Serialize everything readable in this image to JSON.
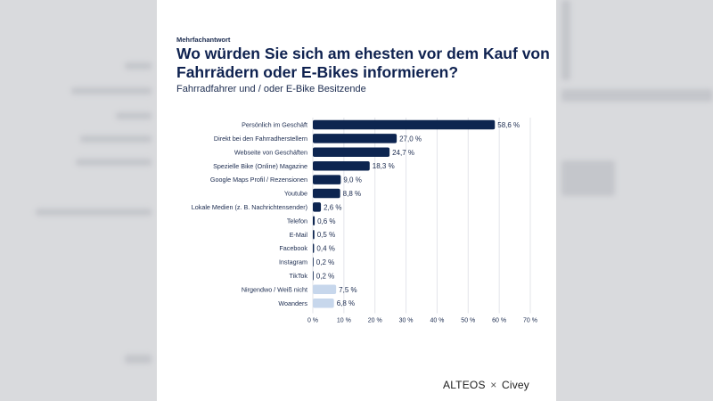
{
  "eyebrow": "Mehrfachantwort",
  "title": "Wo würden Sie sich am ehesten vor dem Kauf von Fahrrädern oder E-Bikes informieren?",
  "subtitle": "Fahrradfahrer und / oder E-Bike Besitzende",
  "brand": {
    "left": "ALTEOS",
    "separator": "×",
    "right": "Civey"
  },
  "colors": {
    "primary_bar": "#0d2550",
    "secondary_bar": "#c7d7ec",
    "grid": "#e3e5ea"
  },
  "chart_data": {
    "type": "bar",
    "orientation": "horizontal",
    "categories": [
      "Persönlich im Geschäft",
      "Direkt bei den Fahrradherstellern",
      "Webseite von Geschäften",
      "Spezielle Bike (Online) Magazine",
      "Google Maps Profil / Rezensionen",
      "Youtube",
      "Lokale Medien (z. B. Nachrichtensender)",
      "Telefon",
      "E-Mail",
      "Facebook",
      "Instagram",
      "TikTok",
      "Nirgendwo / Weiß nicht",
      "Woanders"
    ],
    "values": [
      58.6,
      27.0,
      24.7,
      18.3,
      9.0,
      8.8,
      2.6,
      0.6,
      0.5,
      0.4,
      0.2,
      0.2,
      7.5,
      6.8
    ],
    "value_labels": [
      "58,6 %",
      "27,0 %",
      "24,7 %",
      "18,3 %",
      "9,0 %",
      "8,8 %",
      "2,6 %",
      "0,6 %",
      "0,5 %",
      "0,4 %",
      "0,2 %",
      "0,2 %",
      "7,5 %",
      "6,8 %"
    ],
    "highlight": [
      "primary",
      "primary",
      "primary",
      "primary",
      "primary",
      "primary",
      "primary",
      "primary",
      "primary",
      "primary",
      "primary",
      "primary",
      "secondary",
      "secondary"
    ],
    "xlim": [
      0,
      70
    ],
    "xticks": [
      "0 %",
      "10 %",
      "20 %",
      "30 %",
      "40 %",
      "50 %",
      "60 %",
      "70 %"
    ],
    "grid": true
  }
}
